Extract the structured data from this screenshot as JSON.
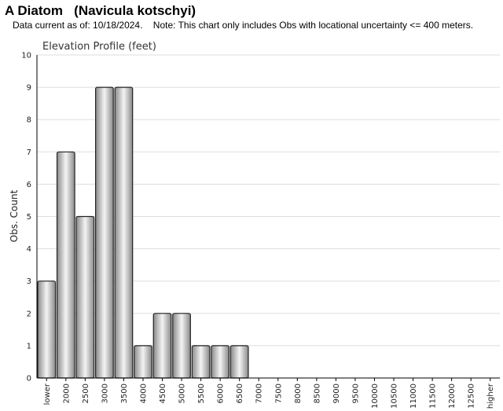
{
  "header": {
    "title": "A Diatom   (Navicula kotschyi)",
    "note": "Data current as of: 10/18/2024.    Note: This chart only includes Obs with locational uncertainty <= 400 meters."
  },
  "colors": {
    "bar_fill_edge": "#8a8a8a",
    "bar_fill_highlight": "#f4f4f4",
    "bar_stroke": "#222222",
    "grid": "#dddddd",
    "axis": "#000000"
  },
  "chart_data": {
    "type": "bar",
    "title": "Elevation Profile (feet)",
    "xlabel": "",
    "ylabel": "Obs. Count",
    "ylim": [
      0,
      10
    ],
    "yticks": [
      0,
      1,
      2,
      3,
      4,
      5,
      6,
      7,
      8,
      9,
      10
    ],
    "grid": true,
    "categories": [
      "lower",
      "2000",
      "2500",
      "3000",
      "3500",
      "4000",
      "4500",
      "5000",
      "5500",
      "6000",
      "6500",
      "7000",
      "7500",
      "8000",
      "8500",
      "9000",
      "9500",
      "10000",
      "10500",
      "11000",
      "11500",
      "12000",
      "12500",
      "higher"
    ],
    "values": [
      3,
      7,
      5,
      9,
      9,
      1,
      2,
      2,
      1,
      1,
      1,
      0,
      0,
      0,
      0,
      0,
      0,
      0,
      0,
      0,
      0,
      0,
      0,
      0
    ]
  }
}
